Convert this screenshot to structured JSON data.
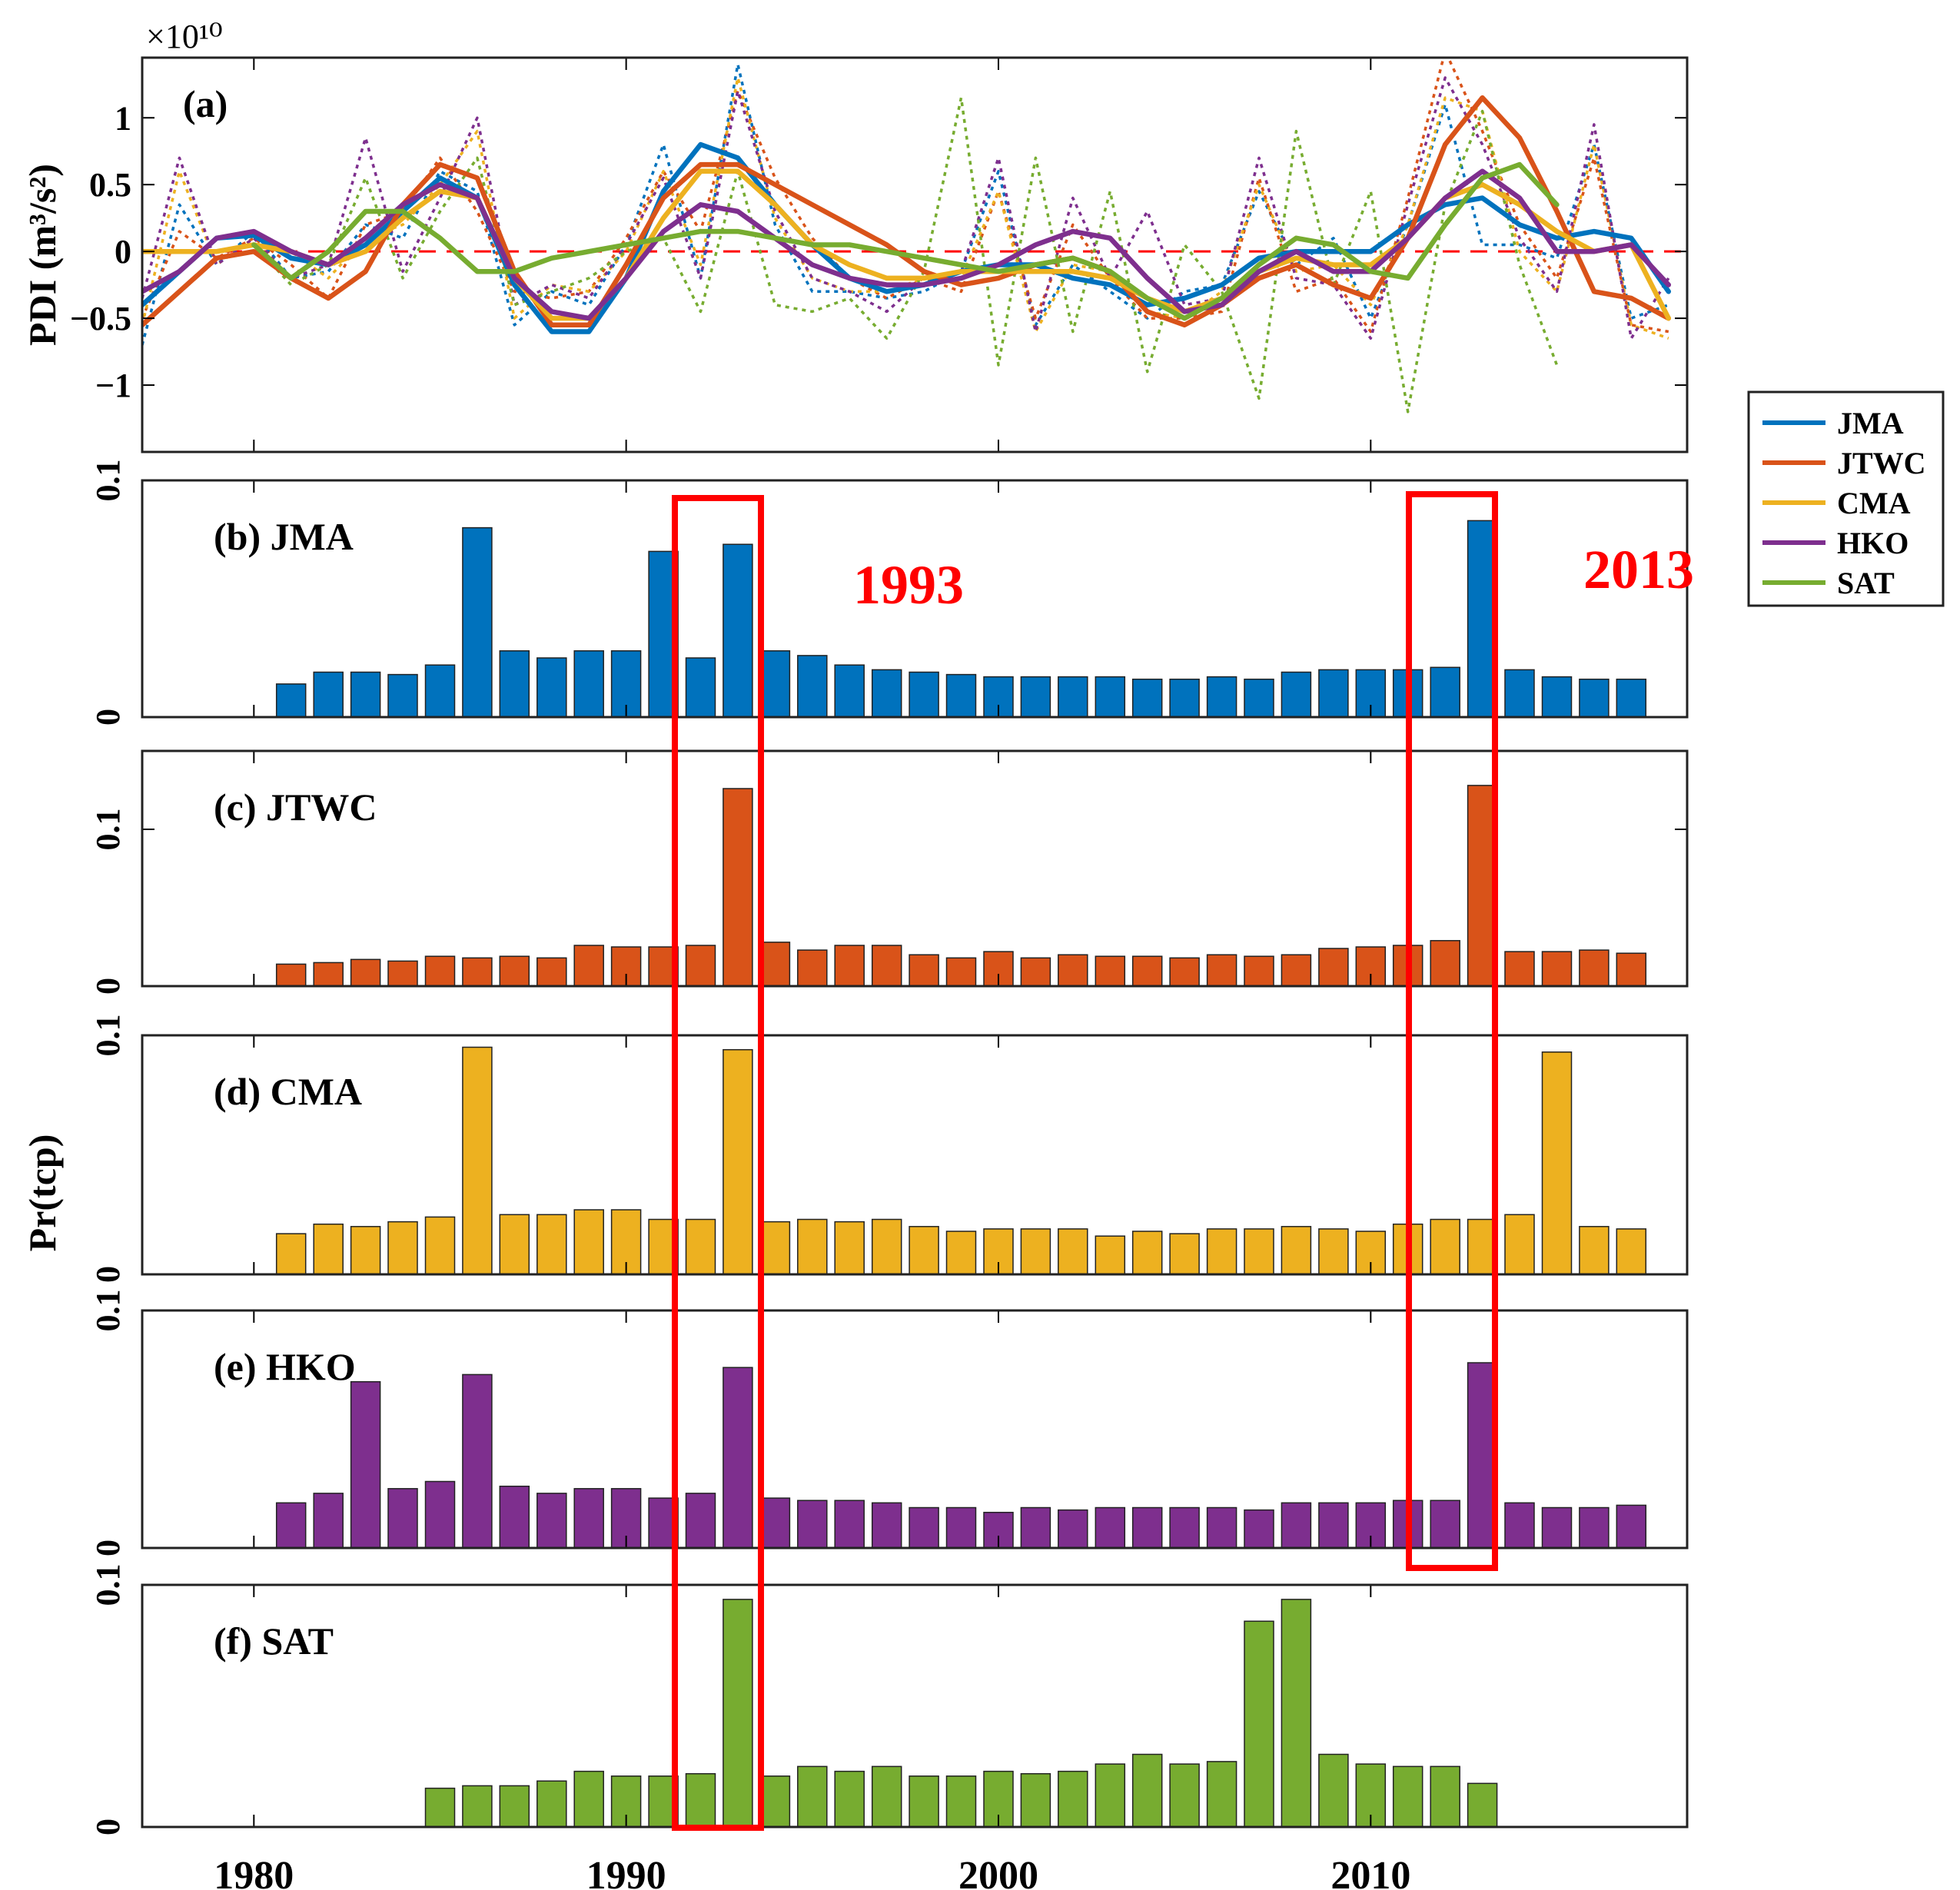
{
  "chart_data": [
    {
      "type": "line",
      "panel_label": "(a)",
      "ylabel": "PDI (m³/s²)",
      "y_multiplier": "×10¹⁰",
      "xlim": [
        1977,
        2018.5
      ],
      "ylim": [
        -1.5,
        1.45
      ],
      "y_ticks": [
        -1,
        -0.5,
        0,
        0.5,
        1
      ],
      "y_tick_labels": [
        "−1",
        "−0.5",
        "0",
        "0.5",
        "1"
      ],
      "reference_line": {
        "y": 0,
        "color": "#ff0000",
        "style": "dashed"
      },
      "series": [
        {
          "name": "JMA",
          "color": "#0072BD",
          "x": [
            1977,
            1978,
            1979,
            1980,
            1981,
            1982,
            1983,
            1984,
            1985,
            1986,
            1987,
            1988,
            1989,
            1990,
            1991,
            1992,
            1993,
            1994,
            1995,
            1996,
            1997,
            1998,
            1999,
            2000,
            2001,
            2002,
            2003,
            2004,
            2005,
            2006,
            2007,
            2008,
            2009,
            2010,
            2011,
            2012,
            2013,
            2014,
            2015,
            2016,
            2017,
            2018
          ],
          "smooth": [
            -0.4,
            -0.15,
            0.1,
            0.12,
            -0.05,
            -0.1,
            0.05,
            0.3,
            0.55,
            0.4,
            -0.25,
            -0.6,
            -0.6,
            -0.2,
            0.45,
            0.8,
            0.7,
            0.35,
            0.05,
            -0.2,
            -0.3,
            -0.25,
            -0.15,
            -0.1,
            -0.1,
            -0.2,
            -0.25,
            -0.4,
            -0.35,
            -0.25,
            -0.05,
            0,
            0,
            0,
            0.2,
            0.35,
            0.4,
            0.2,
            0.1,
            0.15,
            0.1,
            -0.3
          ],
          "raw": [
            -0.7,
            0.35,
            -0.1,
            0.15,
            -0.2,
            -0.15,
            0.2,
            0.1,
            0.6,
            0.45,
            -0.55,
            -0.3,
            -0.4,
            0.05,
            0.8,
            -0.2,
            1.4,
            0.2,
            -0.3,
            -0.3,
            -0.35,
            -0.3,
            -0.15,
            0.6,
            -0.55,
            -0.1,
            -0.3,
            -0.5,
            -0.3,
            -0.25,
            0.45,
            -0.1,
            0.1,
            -0.5,
            0.2,
            1.1,
            0.05,
            0.05,
            -0.05,
            0.8,
            -0.5,
            -0.4
          ]
        },
        {
          "name": "JTWC",
          "color": "#D95319",
          "x": [
            1977,
            1978,
            1979,
            1980,
            1981,
            1982,
            1983,
            1984,
            1985,
            1986,
            1987,
            1988,
            1989,
            1990,
            1991,
            1992,
            1993,
            1994,
            1995,
            1996,
            1997,
            1998,
            1999,
            2000,
            2001,
            2002,
            2003,
            2004,
            2005,
            2006,
            2007,
            2008,
            2009,
            2010,
            2011,
            2012,
            2013,
            2014,
            2015,
            2016,
            2017,
            2018
          ],
          "smooth": [
            -0.55,
            -0.3,
            -0.05,
            0.0,
            -0.2,
            -0.35,
            -0.15,
            0.35,
            0.65,
            0.55,
            -0.15,
            -0.55,
            -0.55,
            -0.1,
            0.4,
            0.65,
            0.65,
            0.5,
            0.35,
            0.2,
            0.05,
            -0.15,
            -0.25,
            -0.2,
            -0.1,
            -0.05,
            -0.15,
            -0.45,
            -0.55,
            -0.4,
            -0.2,
            -0.1,
            -0.25,
            -0.35,
            0.1,
            0.8,
            1.15,
            0.85,
            0.3,
            -0.3,
            -0.35,
            -0.5
          ],
          "raw": [
            -0.5,
            0.15,
            -0.05,
            0.1,
            -0.1,
            -0.35,
            0.2,
            0.3,
            0.7,
            0.3,
            -0.3,
            -0.35,
            -0.3,
            0.1,
            0.6,
            0.15,
            1.2,
            0.55,
            0.1,
            -0.2,
            -0.35,
            -0.2,
            -0.3,
            0.45,
            -0.5,
            0.2,
            -0.2,
            -0.5,
            -0.5,
            -0.45,
            0.55,
            -0.3,
            -0.2,
            -0.6,
            0.4,
            1.5,
            0.9,
            0.2,
            -0.2,
            0.7,
            -0.55,
            -0.6
          ]
        },
        {
          "name": "CMA",
          "color": "#EDB120",
          "x": [
            1977,
            1978,
            1979,
            1980,
            1981,
            1982,
            1983,
            1984,
            1985,
            1986,
            1987,
            1988,
            1989,
            1990,
            1991,
            1992,
            1993,
            1994,
            1995,
            1996,
            1997,
            1998,
            1999,
            2000,
            2001,
            2002,
            2003,
            2004,
            2005,
            2006,
            2007,
            2008,
            2009,
            2010,
            2011,
            2012,
            2013,
            2014,
            2015,
            2016,
            2017,
            2018
          ],
          "smooth": [
            0.0,
            0.0,
            0.0,
            0.05,
            0.0,
            -0.1,
            0.0,
            0.25,
            0.45,
            0.4,
            -0.2,
            -0.5,
            -0.5,
            -0.2,
            0.25,
            0.6,
            0.6,
            0.35,
            0.05,
            -0.1,
            -0.2,
            -0.2,
            -0.15,
            -0.15,
            -0.15,
            -0.15,
            -0.2,
            -0.35,
            -0.45,
            -0.35,
            -0.15,
            -0.05,
            -0.1,
            -0.1,
            0.1,
            0.4,
            0.5,
            0.35,
            0.15,
            0.0,
            0.05,
            -0.5
          ],
          "raw": [
            -0.55,
            0.6,
            -0.1,
            0.1,
            0.0,
            -0.2,
            0.1,
            0.2,
            0.5,
            0.9,
            -0.5,
            -0.25,
            -0.3,
            0.0,
            0.6,
            -0.1,
            1.3,
            0.25,
            -0.2,
            -0.3,
            -0.3,
            -0.2,
            -0.2,
            0.45,
            -0.6,
            -0.1,
            -0.15,
            -0.45,
            -0.5,
            -0.3,
            0.5,
            -0.15,
            -0.1,
            -0.4,
            0.2,
            1.15,
            1.05,
            0.0,
            -0.3,
            0.8,
            -0.55,
            -0.65
          ]
        },
        {
          "name": "HKO",
          "color": "#7E2F8E",
          "x": [
            1977,
            1978,
            1979,
            1980,
            1981,
            1982,
            1983,
            1984,
            1985,
            1986,
            1987,
            1988,
            1989,
            1990,
            1991,
            1992,
            1993,
            1994,
            1995,
            1996,
            1997,
            1998,
            1999,
            2000,
            2001,
            2002,
            2003,
            2004,
            2005,
            2006,
            2007,
            2008,
            2009,
            2010,
            2011,
            2012,
            2013,
            2014,
            2015,
            2016,
            2017,
            2018
          ],
          "smooth": [
            -0.3,
            -0.15,
            0.1,
            0.15,
            0.0,
            -0.1,
            0.1,
            0.35,
            0.5,
            0.4,
            -0.2,
            -0.45,
            -0.5,
            -0.2,
            0.15,
            0.35,
            0.3,
            0.1,
            -0.1,
            -0.2,
            -0.25,
            -0.25,
            -0.2,
            -0.1,
            0.05,
            0.15,
            0.1,
            -0.2,
            -0.45,
            -0.4,
            -0.15,
            0.0,
            -0.15,
            -0.15,
            0.1,
            0.4,
            0.6,
            0.4,
            0.0,
            0.0,
            0.05,
            -0.25
          ],
          "raw": [
            -0.35,
            0.7,
            -0.1,
            0.1,
            -0.2,
            -0.1,
            0.85,
            -0.15,
            0.4,
            1.0,
            -0.4,
            -0.25,
            -0.35,
            0.05,
            0.55,
            -0.2,
            1.2,
            0.3,
            -0.2,
            -0.3,
            -0.45,
            -0.2,
            -0.15,
            0.7,
            -0.6,
            0.4,
            -0.2,
            0.3,
            -0.4,
            -0.35,
            0.7,
            -0.2,
            -0.25,
            -0.65,
            0.35,
            1.3,
            0.8,
            0.1,
            -0.3,
            0.95,
            -0.65,
            -0.2
          ]
        },
        {
          "name": "SAT",
          "color": "#77AC30",
          "x": [
            1980,
            1981,
            1982,
            1983,
            1984,
            1985,
            1986,
            1987,
            1988,
            1989,
            1990,
            1991,
            1992,
            1993,
            1994,
            1995,
            1996,
            1997,
            1998,
            1999,
            2000,
            2001,
            2002,
            2003,
            2004,
            2005,
            2006,
            2007,
            2008,
            2009,
            2010,
            2011,
            2012,
            2013,
            2014,
            2015
          ],
          "smooth": [
            0.05,
            -0.2,
            0.0,
            0.3,
            0.3,
            0.1,
            -0.15,
            -0.15,
            -0.05,
            0.0,
            0.05,
            0.1,
            0.15,
            0.15,
            0.1,
            0.05,
            0.05,
            0.0,
            -0.05,
            -0.1,
            -0.15,
            -0.1,
            -0.05,
            -0.15,
            -0.35,
            -0.5,
            -0.35,
            -0.1,
            0.1,
            0.05,
            -0.15,
            -0.2,
            0.2,
            0.55,
            0.65,
            0.35
          ],
          "raw": [
            0.05,
            -0.25,
            -0.1,
            0.55,
            -0.2,
            0.3,
            0.7,
            -0.4,
            -0.3,
            -0.2,
            0.0,
            0.1,
            -0.45,
            0.6,
            -0.4,
            -0.45,
            -0.35,
            -0.65,
            -0.15,
            1.15,
            -0.85,
            0.7,
            -0.6,
            0.45,
            -0.9,
            0.05,
            -0.3,
            -1.1,
            0.9,
            -0.25,
            0.45,
            -1.2,
            0.35,
            1.05,
            -0.1,
            -0.85
          ]
        }
      ]
    },
    {
      "type": "bar",
      "panel_label": "(b) JMA",
      "color": "#0072BD",
      "ylim": [
        0,
        0.1
      ],
      "y_tick_labels": [
        "0",
        "0.1"
      ],
      "x": [
        1981,
        1982,
        1983,
        1984,
        1985,
        1986,
        1987,
        1988,
        1989,
        1990,
        1991,
        1992,
        1993,
        1994,
        1995,
        1996,
        1997,
        1998,
        1999,
        2000,
        2001,
        2002,
        2003,
        2004,
        2005,
        2006,
        2007,
        2008,
        2009,
        2010,
        2011,
        2012,
        2013,
        2014,
        2015,
        2016,
        2017
      ],
      "values": [
        0.014,
        0.019,
        0.019,
        0.018,
        0.022,
        0.08,
        0.028,
        0.025,
        0.028,
        0.028,
        0.07,
        0.025,
        0.073,
        0.028,
        0.026,
        0.022,
        0.02,
        0.019,
        0.018,
        0.017,
        0.017,
        0.017,
        0.017,
        0.016,
        0.016,
        0.017,
        0.016,
        0.019,
        0.02,
        0.02,
        0.02,
        0.021,
        0.083,
        0.02,
        0.017,
        0.016,
        0.016
      ]
    },
    {
      "type": "bar",
      "panel_label": "(c) JTWC",
      "color": "#D95319",
      "ylim": [
        0,
        0.15
      ],
      "y_tick_labels": [
        "0",
        "0.1"
      ],
      "x": [
        1981,
        1982,
        1983,
        1984,
        1985,
        1986,
        1987,
        1988,
        1989,
        1990,
        1991,
        1992,
        1993,
        1994,
        1995,
        1996,
        1997,
        1998,
        1999,
        2000,
        2001,
        2002,
        2003,
        2004,
        2005,
        2006,
        2007,
        2008,
        2009,
        2010,
        2011,
        2012,
        2013,
        2014,
        2015,
        2016,
        2017
      ],
      "values": [
        0.014,
        0.015,
        0.017,
        0.016,
        0.019,
        0.018,
        0.019,
        0.018,
        0.026,
        0.025,
        0.025,
        0.026,
        0.126,
        0.028,
        0.023,
        0.026,
        0.026,
        0.02,
        0.018,
        0.022,
        0.018,
        0.02,
        0.019,
        0.019,
        0.018,
        0.02,
        0.019,
        0.02,
        0.024,
        0.025,
        0.026,
        0.029,
        0.128,
        0.022,
        0.022,
        0.023,
        0.021
      ]
    },
    {
      "type": "bar",
      "panel_label": "(d) CMA",
      "color": "#EDB120",
      "ylim": [
        0,
        0.1
      ],
      "y_tick_labels": [
        "0",
        "0.1"
      ],
      "x": [
        1981,
        1982,
        1983,
        1984,
        1985,
        1986,
        1987,
        1988,
        1989,
        1990,
        1991,
        1992,
        1993,
        1994,
        1995,
        1996,
        1997,
        1998,
        1999,
        2000,
        2001,
        2002,
        2003,
        2004,
        2005,
        2006,
        2007,
        2008,
        2009,
        2010,
        2011,
        2012,
        2013,
        2014,
        2015,
        2016,
        2017
      ],
      "values": [
        0.017,
        0.021,
        0.02,
        0.022,
        0.024,
        0.095,
        0.025,
        0.025,
        0.027,
        0.027,
        0.023,
        0.023,
        0.094,
        0.022,
        0.023,
        0.022,
        0.023,
        0.02,
        0.018,
        0.019,
        0.019,
        0.019,
        0.016,
        0.018,
        0.017,
        0.019,
        0.019,
        0.02,
        0.019,
        0.018,
        0.021,
        0.023,
        0.023,
        0.025,
        0.093,
        0.02,
        0.019
      ]
    },
    {
      "type": "bar",
      "panel_label": "(e) HKO",
      "color": "#7E2F8E",
      "ylim": [
        0,
        0.1
      ],
      "y_tick_labels": [
        "0",
        "0.1"
      ],
      "x": [
        1981,
        1982,
        1983,
        1984,
        1985,
        1986,
        1987,
        1988,
        1989,
        1990,
        1991,
        1992,
        1993,
        1994,
        1995,
        1996,
        1997,
        1998,
        1999,
        2000,
        2001,
        2002,
        2003,
        2004,
        2005,
        2006,
        2007,
        2008,
        2009,
        2010,
        2011,
        2012,
        2013,
        2014,
        2015,
        2016,
        2017
      ],
      "values": [
        0.019,
        0.023,
        0.07,
        0.025,
        0.028,
        0.073,
        0.026,
        0.023,
        0.025,
        0.025,
        0.021,
        0.023,
        0.076,
        0.021,
        0.02,
        0.02,
        0.019,
        0.017,
        0.017,
        0.015,
        0.017,
        0.016,
        0.017,
        0.017,
        0.017,
        0.017,
        0.016,
        0.019,
        0.019,
        0.019,
        0.02,
        0.02,
        0.078,
        0.019,
        0.017,
        0.017,
        0.018
      ]
    },
    {
      "type": "bar",
      "panel_label": "(f) SAT",
      "color": "#77AC30",
      "ylim": [
        0,
        0.1
      ],
      "y_tick_labels": [
        "0",
        "0.1"
      ],
      "x_tick_labels": [
        "1980",
        "1990",
        "2000",
        "2010"
      ],
      "x": [
        1985,
        1986,
        1987,
        1988,
        1989,
        1990,
        1991,
        1992,
        1993,
        1994,
        1995,
        1996,
        1997,
        1998,
        1999,
        2000,
        2001,
        2002,
        2003,
        2004,
        2005,
        2006,
        2007,
        2008,
        2009,
        2010,
        2011,
        2012,
        2013
      ],
      "values": [
        0.016,
        0.017,
        0.017,
        0.019,
        0.023,
        0.021,
        0.021,
        0.022,
        0.094,
        0.021,
        0.025,
        0.023,
        0.025,
        0.021,
        0.021,
        0.023,
        0.022,
        0.023,
        0.026,
        0.03,
        0.026,
        0.027,
        0.085,
        0.094,
        0.03,
        0.026,
        0.025,
        0.025,
        0.018
      ]
    }
  ],
  "shared_ylabel": "Pr(tcp)",
  "highlights": [
    {
      "label": "1993",
      "year": 1993,
      "color": "#ff0000"
    },
    {
      "label": "2013",
      "year": 2013,
      "color": "#ff0000"
    }
  ],
  "legend": {
    "placement": "right",
    "items": [
      {
        "name": "JMA",
        "color": "#0072BD"
      },
      {
        "name": "JTWC",
        "color": "#D95319"
      },
      {
        "name": "CMA",
        "color": "#EDB120"
      },
      {
        "name": "HKO",
        "color": "#7E2F8E"
      },
      {
        "name": "SAT",
        "color": "#77AC30"
      }
    ]
  }
}
